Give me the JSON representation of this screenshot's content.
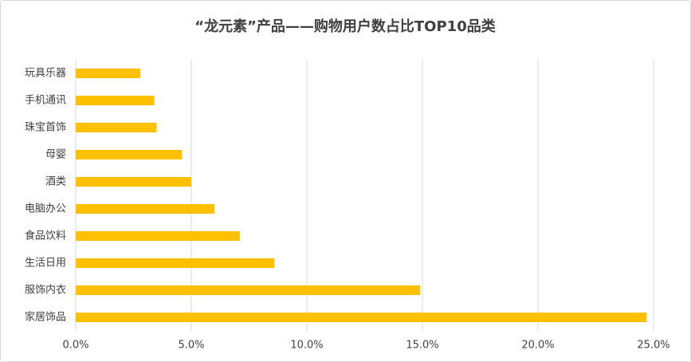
{
  "chart_data": {
    "type": "bar",
    "orientation": "horizontal",
    "title": "“龙元素”产品——购物用户数占比TOP10品类",
    "categories": [
      "玩具乐器",
      "手机通讯",
      "珠宝首饰",
      "母婴",
      "酒类",
      "电脑办公",
      "食品饮料",
      "生活日用",
      "服饰内衣",
      "家居饰品"
    ],
    "values": [
      2.8,
      3.4,
      3.5,
      4.6,
      5.0,
      6.0,
      7.1,
      8.6,
      14.9,
      24.7
    ],
    "color": "#ffc000",
    "xlim": [
      0,
      25
    ],
    "xticks": [
      {
        "value": 0,
        "label": "0.0%"
      },
      {
        "value": 5,
        "label": "5.0%"
      },
      {
        "value": 10,
        "label": "10.0%"
      },
      {
        "value": 15,
        "label": "15.0%"
      },
      {
        "value": 20,
        "label": "20.0%"
      },
      {
        "value": 25,
        "label": "25.0%"
      }
    ],
    "grid": true
  }
}
